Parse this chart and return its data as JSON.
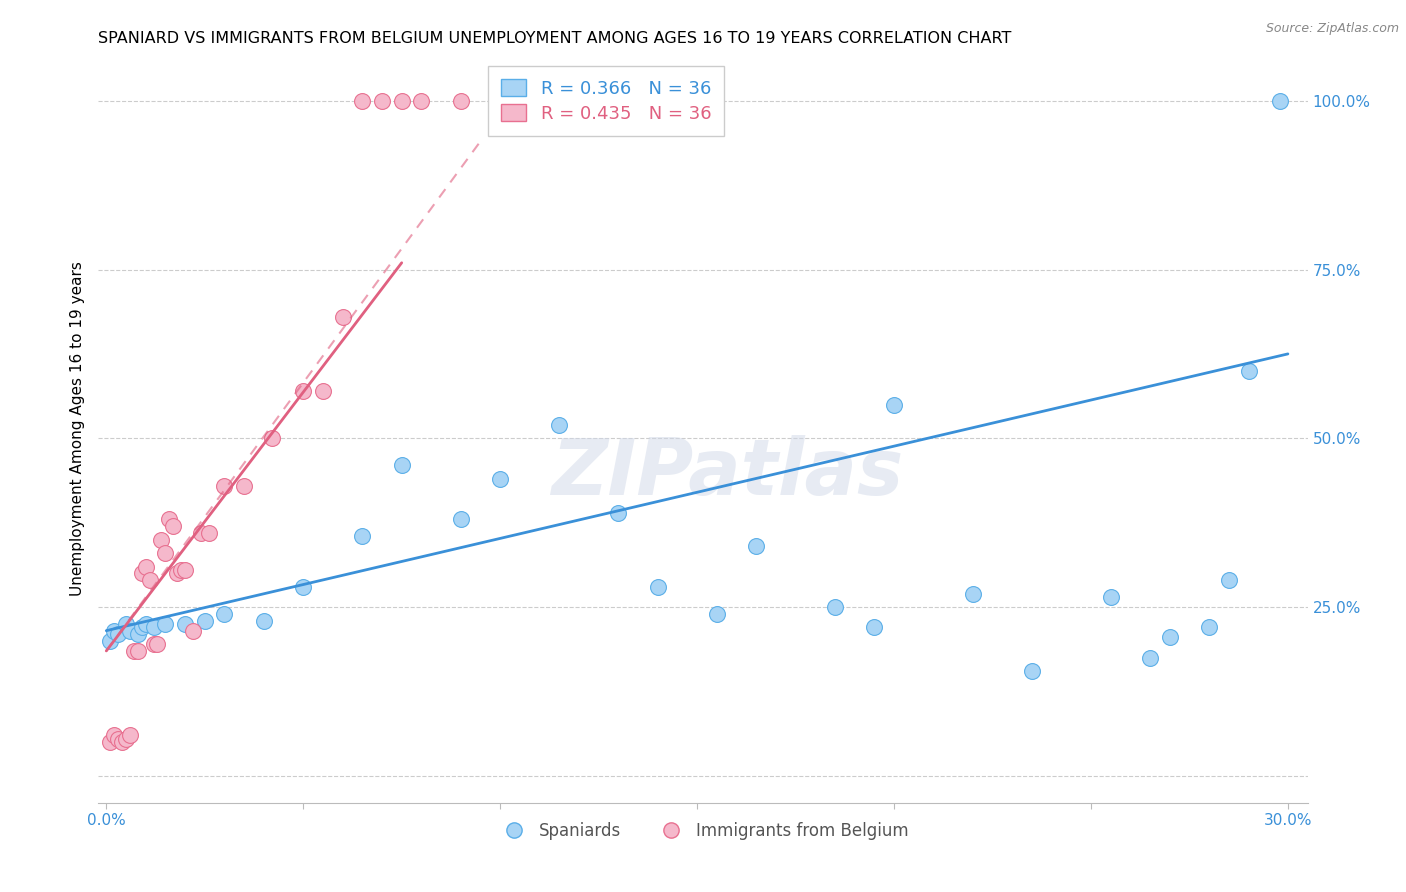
{
  "title": "SPANIARD VS IMMIGRANTS FROM BELGIUM UNEMPLOYMENT AMONG AGES 16 TO 19 YEARS CORRELATION CHART",
  "source": "Source: ZipAtlas.com",
  "ylabel": "Unemployment Among Ages 16 to 19 years",
  "x_tick_positions": [
    0.0,
    0.05,
    0.1,
    0.15,
    0.2,
    0.25,
    0.3
  ],
  "x_tick_labels": [
    "0.0%",
    "",
    "",
    "",
    "",
    "",
    "30.0%"
  ],
  "y_tick_positions": [
    0.0,
    0.25,
    0.5,
    0.75,
    1.0
  ],
  "y_tick_labels": [
    "",
    "25.0%",
    "50.0%",
    "75.0%",
    "100.0%"
  ],
  "xlim": [
    -0.002,
    0.305
  ],
  "ylim": [
    -0.04,
    1.07
  ],
  "legend_entries": [
    {
      "label": "R = 0.366   N = 36",
      "color": "#a8d4f5"
    },
    {
      "label": "R = 0.435   N = 36",
      "color": "#f5b8cb"
    }
  ],
  "legend_labels": [
    "Spaniards",
    "Immigrants from Belgium"
  ],
  "blue_fill_color": "#a8d4f5",
  "pink_fill_color": "#f5b8cb",
  "blue_edge_color": "#5aaee8",
  "pink_edge_color": "#e87090",
  "blue_line_color": "#3a90d8",
  "pink_line_color": "#e06080",
  "watermark_text": "ZIPatlas",
  "blue_dots_x": [
    0.001,
    0.002,
    0.003,
    0.005,
    0.006,
    0.008,
    0.009,
    0.01,
    0.012,
    0.015,
    0.02,
    0.025,
    0.03,
    0.04,
    0.05,
    0.065,
    0.075,
    0.09,
    0.1,
    0.115,
    0.13,
    0.14,
    0.155,
    0.165,
    0.185,
    0.195,
    0.2,
    0.22,
    0.235,
    0.255,
    0.265,
    0.27,
    0.28,
    0.285,
    0.29,
    0.298
  ],
  "blue_dots_y": [
    0.2,
    0.215,
    0.21,
    0.225,
    0.215,
    0.21,
    0.22,
    0.225,
    0.22,
    0.225,
    0.225,
    0.23,
    0.24,
    0.23,
    0.28,
    0.355,
    0.46,
    0.38,
    0.44,
    0.52,
    0.39,
    0.28,
    0.24,
    0.34,
    0.25,
    0.22,
    0.55,
    0.27,
    0.155,
    0.265,
    0.175,
    0.205,
    0.22,
    0.29,
    0.6,
    1.0
  ],
  "pink_dots_x": [
    0.001,
    0.002,
    0.003,
    0.004,
    0.005,
    0.006,
    0.007,
    0.008,
    0.009,
    0.01,
    0.011,
    0.012,
    0.013,
    0.014,
    0.015,
    0.016,
    0.017,
    0.018,
    0.019,
    0.02,
    0.022,
    0.024,
    0.026,
    0.03,
    0.035,
    0.042,
    0.05,
    0.055,
    0.06,
    0.065,
    0.07,
    0.075,
    0.08,
    0.09,
    0.1,
    0.11
  ],
  "pink_dots_y": [
    0.05,
    0.06,
    0.055,
    0.05,
    0.055,
    0.06,
    0.185,
    0.185,
    0.3,
    0.31,
    0.29,
    0.195,
    0.195,
    0.35,
    0.33,
    0.38,
    0.37,
    0.3,
    0.305,
    0.305,
    0.215,
    0.36,
    0.36,
    0.43,
    0.43,
    0.5,
    0.57,
    0.57,
    0.68,
    1.0,
    1.0,
    1.0,
    1.0,
    1.0,
    1.0,
    1.0
  ],
  "blue_trend_x0": 0.0,
  "blue_trend_y0": 0.215,
  "blue_trend_x1": 0.3,
  "blue_trend_y1": 0.625,
  "pink_trend_solid_x0": 0.0,
  "pink_trend_solid_y0": 0.185,
  "pink_trend_solid_x1": 0.075,
  "pink_trend_solid_y1": 0.76,
  "pink_trend_dash_x0": 0.0,
  "pink_trend_dash_y0": 0.185,
  "pink_trend_dash_x1": 0.095,
  "pink_trend_dash_y1": 0.94,
  "title_fontsize": 11.5,
  "axis_label_fontsize": 11,
  "tick_fontsize": 11,
  "legend_fontsize": 13
}
